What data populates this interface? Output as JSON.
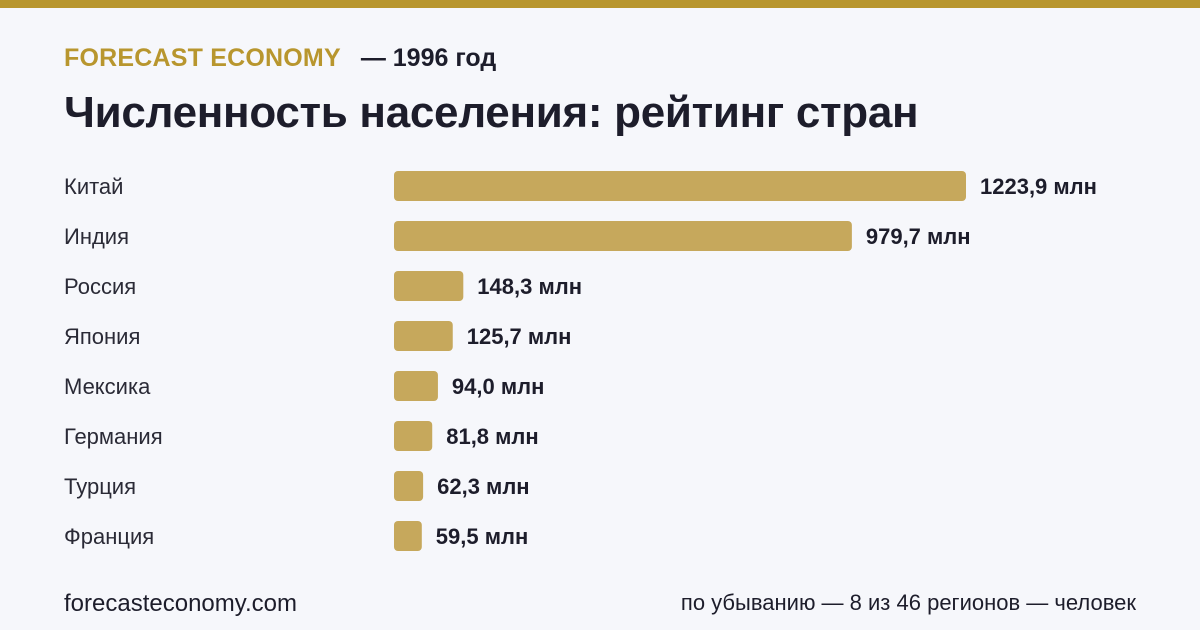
{
  "header": {
    "brand": "FORECAST ECONOMY",
    "year": "— 1996 год",
    "title": "Численность населения: рейтинг стран"
  },
  "colors": {
    "accent": "#b8962e",
    "bar": "#c6a85c",
    "text": "#1d1d2b",
    "background": "#f6f7fb"
  },
  "chart_data": {
    "type": "bar",
    "orientation": "horizontal",
    "title": "Численность населения: рейтинг стран",
    "categories": [
      "Китай",
      "Индия",
      "Россия",
      "Япония",
      "Мексика",
      "Германия",
      "Турция",
      "Франция"
    ],
    "values": [
      1223.9,
      979.7,
      148.3,
      125.7,
      94.0,
      81.8,
      62.3,
      59.5
    ],
    "value_labels": [
      "1223,9 млн",
      "979,7 млн",
      "148,3 млн",
      "125,7 млн",
      "94,0 млн",
      "81,8 млн",
      "62,3 млн",
      "59,5 млн"
    ],
    "unit": "млн",
    "grid": false,
    "legend": "none"
  },
  "footer": {
    "site": "forecasteconomy.com",
    "note": "по убыванию — 8 из 46 регионов — человек"
  }
}
